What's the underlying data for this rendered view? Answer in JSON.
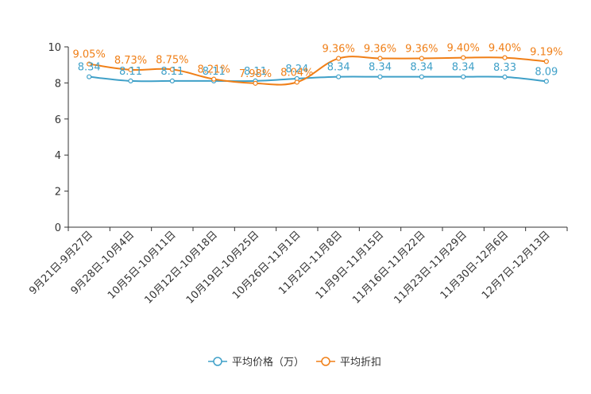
{
  "chart_data": {
    "type": "line",
    "categories": [
      "9月21日-9月27日",
      "9月28日-10月4日",
      "10月5日-10月11日",
      "10月12日-10月18日",
      "10月19日-10月25日",
      "10月26日-11月1日",
      "11月2日-11月8日",
      "11月9日-11月15日",
      "11月16日-11月22日",
      "11月23日-11月29日",
      "11月30日-12月6日",
      "12月7日-12月13日"
    ],
    "series": [
      {
        "name": "平均价格（万）",
        "color": "#3fa0c8",
        "values": [
          8.34,
          8.11,
          8.11,
          8.11,
          8.11,
          8.24,
          8.34,
          8.34,
          8.34,
          8.34,
          8.33,
          8.09
        ],
        "labels": [
          "8.34",
          "8.11",
          "8.11",
          "8.11",
          "8.11",
          "8.24",
          "8.34",
          "8.34",
          "8.34",
          "8.34",
          "8.33",
          "8.09"
        ]
      },
      {
        "name": "平均折扣",
        "color": "#f07f17",
        "values": [
          9.05,
          8.73,
          8.75,
          8.21,
          7.98,
          8.04,
          9.36,
          9.36,
          9.36,
          9.4,
          9.4,
          9.19
        ],
        "labels": [
          "9.05%",
          "8.73%",
          "8.75%",
          "8.21%",
          "7.98%",
          "8.04%",
          "9.36%",
          "9.36%",
          "9.36%",
          "9.40%",
          "9.40%",
          "9.19%"
        ]
      }
    ],
    "ylim": [
      0,
      10
    ],
    "yticks": [
      "0",
      "2",
      "4",
      "6",
      "8",
      "10"
    ],
    "xlabel": "",
    "ylabel": "",
    "legend_position": "bottom-center",
    "grid": false
  }
}
